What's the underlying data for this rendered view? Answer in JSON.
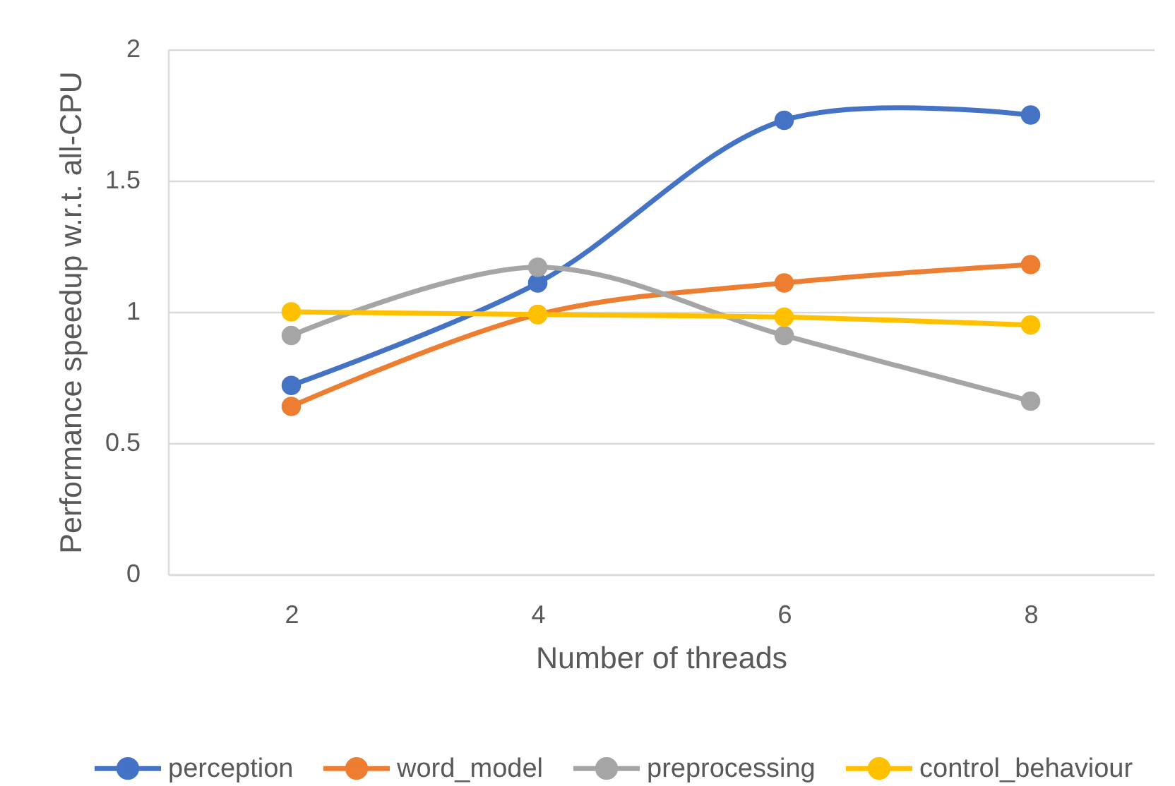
{
  "chart_data": {
    "type": "line",
    "xlabel": "Number of threads",
    "ylabel": "Performance speedup w.r.t. all-CPU",
    "categories": [
      "2",
      "4",
      "6",
      "8"
    ],
    "series": [
      {
        "name": "perception",
        "color": "#4472c4",
        "values": [
          0.72,
          1.11,
          1.73,
          1.75
        ]
      },
      {
        "name": "word_model",
        "color": "#ed7d31",
        "values": [
          0.64,
          0.99,
          1.11,
          1.18
        ]
      },
      {
        "name": "preprocessing",
        "color": "#a5a5a5",
        "values": [
          0.91,
          1.17,
          0.91,
          0.66
        ]
      },
      {
        "name": "control_behaviour",
        "color": "#ffc000",
        "values": [
          1.0,
          0.99,
          0.98,
          0.95
        ]
      }
    ],
    "ylim": [
      0,
      2
    ],
    "yticks": [
      0,
      0.5,
      1,
      1.5,
      2
    ],
    "grid": "y",
    "legend": "bottom",
    "marker": "circle",
    "line_style": "solid"
  }
}
